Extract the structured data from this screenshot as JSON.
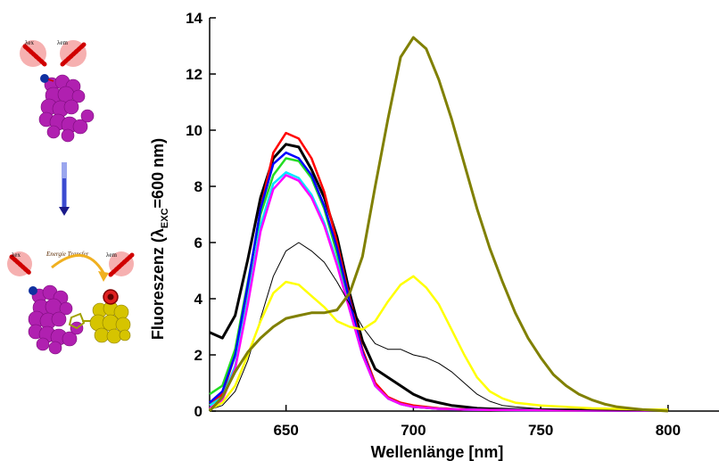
{
  "chart_data": {
    "type": "line",
    "xlabel": "Wellenlänge [nm]",
    "ylabel": {
      "prefix": "Fluoreszenz (",
      "symbol": "λ",
      "sub": "EXC",
      "suffix": "=600 nm)"
    },
    "xlim": [
      620,
      820
    ],
    "ylim": [
      0,
      14
    ],
    "x_ticks": [
      650,
      700,
      750,
      800
    ],
    "y_ticks": [
      0,
      2,
      4,
      6,
      8,
      10,
      12,
      14
    ],
    "grid": false,
    "series": [
      {
        "color": "#000000",
        "width": 3,
        "x": [
          620,
          625,
          630,
          635,
          640,
          645,
          650,
          655,
          660,
          665,
          670,
          675,
          680,
          685,
          690,
          695,
          700,
          705,
          710,
          715,
          720,
          725,
          730,
          740,
          750,
          760,
          770,
          780,
          790,
          800
        ],
        "y": [
          2.8,
          2.6,
          3.4,
          5.4,
          7.6,
          9.0,
          9.5,
          9.4,
          8.6,
          7.6,
          6.2,
          4.2,
          2.5,
          1.5,
          1.2,
          0.9,
          0.6,
          0.4,
          0.3,
          0.2,
          0.15,
          0.1,
          0.08,
          0.06,
          0.05,
          0.04,
          0.03,
          0.03,
          0.02,
          0.02
        ]
      },
      {
        "color": "#ff0000",
        "width": 2.5,
        "x": [
          620,
          625,
          630,
          635,
          640,
          645,
          650,
          655,
          660,
          665,
          670,
          675,
          680,
          685,
          690,
          695,
          700,
          710,
          720,
          730,
          750,
          770,
          800
        ],
        "y": [
          0.2,
          0.6,
          2.0,
          4.4,
          7.2,
          9.2,
          9.9,
          9.7,
          9.0,
          7.8,
          6.0,
          4.0,
          2.2,
          1.0,
          0.5,
          0.3,
          0.2,
          0.1,
          0.06,
          0.04,
          0.03,
          0.02,
          0.02
        ]
      },
      {
        "color": "#22dd22",
        "width": 2.5,
        "x": [
          620,
          625,
          630,
          635,
          640,
          645,
          650,
          655,
          660,
          665,
          670,
          675,
          680,
          685,
          690,
          695,
          700,
          710,
          720,
          730,
          750,
          770,
          800
        ],
        "y": [
          0.6,
          0.9,
          2.2,
          4.6,
          7.0,
          8.4,
          9.0,
          8.9,
          8.3,
          7.2,
          5.6,
          3.8,
          2.1,
          0.9,
          0.45,
          0.25,
          0.15,
          0.08,
          0.05,
          0.04,
          0.03,
          0.02,
          0.02
        ]
      },
      {
        "color": "#0000ff",
        "width": 2.5,
        "x": [
          620,
          625,
          630,
          635,
          640,
          645,
          650,
          655,
          660,
          665,
          670,
          675,
          680,
          685,
          690,
          695,
          700,
          710,
          720,
          730,
          750,
          770,
          800
        ],
        "y": [
          0.3,
          0.7,
          2.0,
          4.5,
          7.2,
          8.8,
          9.2,
          9.0,
          8.4,
          7.3,
          5.8,
          3.9,
          2.1,
          0.9,
          0.45,
          0.25,
          0.15,
          0.08,
          0.05,
          0.04,
          0.03,
          0.02,
          0.02
        ]
      },
      {
        "color": "#00e5ff",
        "width": 2.5,
        "x": [
          620,
          625,
          630,
          635,
          640,
          645,
          650,
          655,
          660,
          665,
          670,
          675,
          680,
          685,
          690,
          695,
          700,
          710,
          720,
          730,
          750,
          770,
          800
        ],
        "y": [
          0.2,
          0.5,
          1.6,
          4.0,
          6.6,
          8.1,
          8.5,
          8.3,
          7.7,
          6.7,
          5.3,
          3.6,
          2.0,
          0.9,
          0.45,
          0.25,
          0.15,
          0.08,
          0.05,
          0.04,
          0.03,
          0.02,
          0.02
        ]
      },
      {
        "color": "#ff00ff",
        "width": 2.5,
        "x": [
          620,
          625,
          630,
          635,
          640,
          645,
          650,
          655,
          660,
          665,
          670,
          675,
          680,
          685,
          690,
          695,
          700,
          710,
          720,
          730,
          750,
          770,
          800
        ],
        "y": [
          0.1,
          0.4,
          1.5,
          3.8,
          6.4,
          7.9,
          8.4,
          8.2,
          7.6,
          6.6,
          5.2,
          3.6,
          2.0,
          0.9,
          0.45,
          0.25,
          0.15,
          0.08,
          0.05,
          0.04,
          0.03,
          0.02,
          0.02
        ]
      },
      {
        "color": "#000000",
        "width": 1,
        "x": [
          620,
          625,
          630,
          635,
          640,
          645,
          650,
          655,
          660,
          665,
          670,
          675,
          680,
          685,
          690,
          695,
          700,
          705,
          710,
          715,
          720,
          725,
          730,
          735,
          740,
          750,
          760,
          770,
          780,
          790,
          800
        ],
        "y": [
          0.05,
          0.2,
          0.7,
          1.8,
          3.3,
          4.8,
          5.7,
          6.0,
          5.7,
          5.3,
          4.6,
          3.8,
          3.0,
          2.4,
          2.2,
          2.2,
          2.0,
          1.9,
          1.7,
          1.4,
          1.0,
          0.6,
          0.35,
          0.2,
          0.15,
          0.08,
          0.05,
          0.04,
          0.03,
          0.02,
          0.02
        ]
      },
      {
        "color": "#ffff00",
        "width": 2.5,
        "x": [
          620,
          625,
          630,
          635,
          640,
          645,
          650,
          655,
          660,
          665,
          670,
          675,
          680,
          685,
          690,
          695,
          700,
          705,
          710,
          715,
          720,
          725,
          730,
          735,
          740,
          745,
          750,
          760,
          770,
          780,
          790,
          800
        ],
        "y": [
          0.05,
          0.3,
          0.9,
          2.0,
          3.2,
          4.2,
          4.6,
          4.5,
          4.1,
          3.7,
          3.2,
          3.0,
          2.9,
          3.2,
          3.9,
          4.5,
          4.8,
          4.4,
          3.8,
          2.9,
          2.0,
          1.2,
          0.7,
          0.45,
          0.3,
          0.25,
          0.2,
          0.15,
          0.1,
          0.08,
          0.06,
          0.05
        ]
      },
      {
        "color": "#808000",
        "width": 3,
        "x": [
          620,
          625,
          630,
          635,
          640,
          645,
          650,
          655,
          660,
          665,
          670,
          675,
          680,
          685,
          690,
          695,
          700,
          705,
          710,
          715,
          720,
          725,
          730,
          735,
          740,
          745,
          750,
          755,
          760,
          765,
          770,
          775,
          780,
          785,
          790,
          795,
          800
        ],
        "y": [
          0.0,
          0.5,
          1.4,
          2.1,
          2.6,
          3.0,
          3.3,
          3.4,
          3.5,
          3.5,
          3.6,
          4.2,
          5.5,
          8.0,
          10.4,
          12.6,
          13.3,
          12.9,
          11.8,
          10.4,
          8.8,
          7.2,
          5.8,
          4.6,
          3.5,
          2.6,
          1.9,
          1.3,
          0.9,
          0.6,
          0.4,
          0.25,
          0.15,
          0.1,
          0.05,
          0.03,
          0.0
        ]
      }
    ]
  },
  "scheme": {
    "label_ex": "λex",
    "label_em": "λem",
    "energy_transfer": "Energie Transfer"
  }
}
